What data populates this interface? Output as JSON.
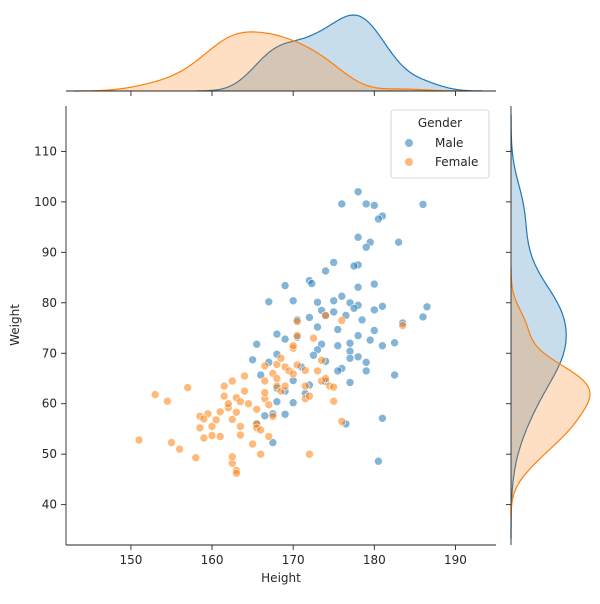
{
  "chart_data": {
    "type": "scatter",
    "title": "",
    "xlabel": "Height",
    "ylabel": "Weight",
    "xlim": [
      142,
      195
    ],
    "ylim": [
      32,
      119
    ],
    "x_ticks": [
      150,
      160,
      170,
      180,
      190
    ],
    "y_ticks": [
      40,
      50,
      60,
      70,
      80,
      90,
      100,
      110
    ],
    "grid": false,
    "legend": {
      "title": "Gender",
      "position": "top-right"
    },
    "marginals": {
      "top": "kde of Height by Gender",
      "right": "kde of Weight by Gender"
    },
    "colors": {
      "Male": "#1f77b4",
      "Female": "#ff7f0e"
    },
    "series": [
      {
        "name": "Male",
        "points": [
          [
            178,
            102
          ],
          [
            176,
            99.6
          ],
          [
            179,
            99.6
          ],
          [
            180,
            99.3
          ],
          [
            186,
            99.5
          ],
          [
            181,
            97.2
          ],
          [
            180.5,
            96.6
          ],
          [
            178,
            93
          ],
          [
            179.5,
            92
          ],
          [
            179,
            91
          ],
          [
            183,
            92
          ],
          [
            175,
            88
          ],
          [
            178,
            87.5
          ],
          [
            177.5,
            87.3
          ],
          [
            174,
            86.3
          ],
          [
            172,
            84.4
          ],
          [
            172.3,
            83.8
          ],
          [
            169,
            83.4
          ],
          [
            180,
            83.7
          ],
          [
            178,
            83.1
          ],
          [
            175,
            80.4
          ],
          [
            177,
            80
          ],
          [
            176,
            81.3
          ],
          [
            170,
            80.4
          ],
          [
            167,
            80.2
          ],
          [
            173,
            80.1
          ],
          [
            178,
            79.5
          ],
          [
            181,
            79.3
          ],
          [
            186.5,
            79.2
          ],
          [
            180,
            78.6
          ],
          [
            177.5,
            78.9
          ],
          [
            173.5,
            78.5
          ],
          [
            175,
            78.2
          ],
          [
            176.5,
            77.5
          ],
          [
            172,
            77.1
          ],
          [
            174,
            77.4
          ],
          [
            186,
            77.2
          ],
          [
            170.5,
            76.6
          ],
          [
            178.5,
            76.6
          ],
          [
            175.5,
            74.7
          ],
          [
            173,
            75.2
          ],
          [
            180,
            74.5
          ],
          [
            183.5,
            76
          ],
          [
            178,
            73.5
          ],
          [
            168,
            73.8
          ],
          [
            170.5,
            73.2
          ],
          [
            169,
            72.8
          ],
          [
            165.5,
            71.8
          ],
          [
            173.5,
            71.8
          ],
          [
            175.5,
            71.5
          ],
          [
            177,
            72
          ],
          [
            179.5,
            72.6
          ],
          [
            182.5,
            72.1
          ],
          [
            173,
            70.7
          ],
          [
            177,
            70.4
          ],
          [
            181,
            71.5
          ],
          [
            168,
            69.8
          ],
          [
            172.5,
            69.6
          ],
          [
            177,
            69
          ],
          [
            178,
            69.3
          ],
          [
            174,
            68.4
          ],
          [
            165,
            68.7
          ],
          [
            167,
            68.2
          ],
          [
            179,
            68.2
          ],
          [
            176,
            67
          ],
          [
            171,
            67.3
          ],
          [
            175.5,
            66.5
          ],
          [
            166,
            65.7
          ],
          [
            179,
            66.5
          ],
          [
            182.5,
            65.7
          ],
          [
            170,
            64.6
          ],
          [
            174,
            64.4
          ],
          [
            177,
            64.2
          ],
          [
            168,
            63.1
          ],
          [
            172,
            63.7
          ],
          [
            169,
            62.5
          ],
          [
            171.5,
            62
          ],
          [
            168,
            60.4
          ],
          [
            170,
            60.2
          ],
          [
            167.5,
            58
          ],
          [
            166.5,
            57.6
          ],
          [
            169,
            57.9
          ],
          [
            165.5,
            56
          ],
          [
            176.5,
            56
          ],
          [
            181,
            57.1
          ],
          [
            167.5,
            52.3
          ],
          [
            180.5,
            48.6
          ]
        ]
      },
      {
        "name": "Female",
        "points": [
          [
            151,
            52.8
          ],
          [
            153,
            61.8
          ],
          [
            154.5,
            60.5
          ],
          [
            155,
            52.3
          ],
          [
            156,
            51
          ],
          [
            157,
            63.2
          ],
          [
            158.5,
            57.5
          ],
          [
            158,
            49.3
          ],
          [
            158.5,
            55.2
          ],
          [
            159,
            53.2
          ],
          [
            159.5,
            58
          ],
          [
            159,
            57
          ],
          [
            160,
            55.5
          ],
          [
            160.5,
            56.8
          ],
          [
            160,
            53.7
          ],
          [
            161,
            58.4
          ],
          [
            161,
            53.5
          ],
          [
            161.5,
            61.5
          ],
          [
            161.5,
            63.5
          ],
          [
            162,
            59.2
          ],
          [
            162,
            60
          ],
          [
            162.5,
            56.9
          ],
          [
            162.5,
            64.5
          ],
          [
            162.5,
            48.2
          ],
          [
            162.5,
            49.5
          ],
          [
            163,
            46.8
          ],
          [
            163,
            46.2
          ],
          [
            163,
            58.3
          ],
          [
            163,
            61.2
          ],
          [
            163.5,
            60.4
          ],
          [
            163.5,
            55.5
          ],
          [
            163.5,
            53.8
          ],
          [
            164,
            62.5
          ],
          [
            164,
            65.5
          ],
          [
            164.5,
            60
          ],
          [
            165,
            52
          ],
          [
            165.5,
            58.9
          ],
          [
            165.5,
            56
          ],
          [
            165.5,
            55.2
          ],
          [
            166,
            54.8
          ],
          [
            166,
            50
          ],
          [
            166.5,
            61
          ],
          [
            166.5,
            62.2
          ],
          [
            166.5,
            64.5
          ],
          [
            166.5,
            67.5
          ],
          [
            167,
            59.8
          ],
          [
            167,
            53.5
          ],
          [
            167.5,
            57.5
          ],
          [
            167.5,
            66
          ],
          [
            168,
            65
          ],
          [
            168,
            63.5
          ],
          [
            168,
            67.8
          ],
          [
            168.5,
            69
          ],
          [
            168.5,
            62.5
          ],
          [
            169,
            63.5
          ],
          [
            169,
            67.3
          ],
          [
            169.5,
            66.5
          ],
          [
            170,
            65.9
          ],
          [
            170,
            71
          ],
          [
            170,
            71.5
          ],
          [
            170.5,
            67.7
          ],
          [
            170.5,
            73.5
          ],
          [
            170.5,
            76.3
          ],
          [
            171.5,
            61
          ],
          [
            171.5,
            66.6
          ],
          [
            171.5,
            63.5
          ],
          [
            172,
            61.5
          ],
          [
            172,
            50
          ],
          [
            172.5,
            73
          ],
          [
            173,
            66.5
          ],
          [
            173.5,
            68.6
          ],
          [
            173.5,
            64.5
          ],
          [
            174,
            65
          ],
          [
            174.5,
            63.5
          ],
          [
            175,
            63.3
          ],
          [
            175,
            60.5
          ],
          [
            176,
            56.5
          ],
          [
            176,
            76.5
          ],
          [
            174,
            77.5
          ],
          [
            183.5,
            75.5
          ]
        ]
      }
    ]
  }
}
